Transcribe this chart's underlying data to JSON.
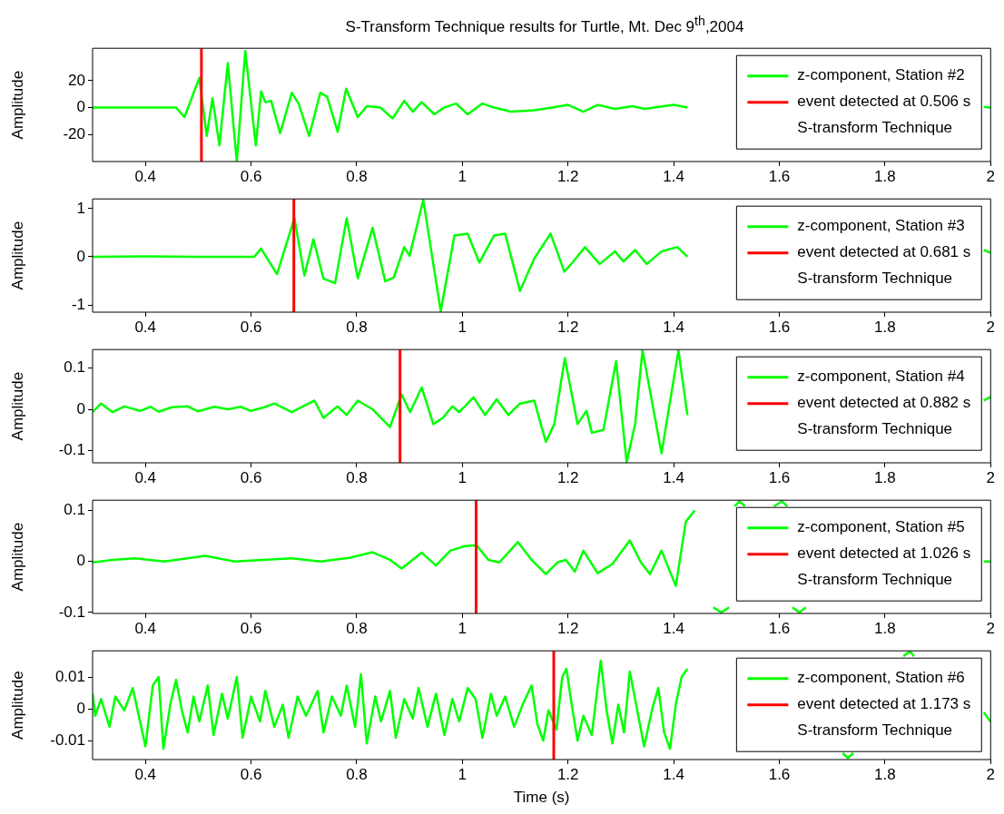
{
  "chart_data": [
    {
      "type": "line",
      "title": "S-Transform Technique results for Turtle, Mt. Dec 9$^{th}$,2004",
      "ylabel": "Amplitude",
      "xlim": [
        0.3,
        2
      ],
      "xticks": [
        0.4,
        0.6,
        0.8,
        1,
        1.2,
        1.4,
        1.6,
        1.8,
        2
      ],
      "ylim": [
        -40,
        44
      ],
      "yticks": [
        -20,
        0,
        20
      ],
      "legend": "top right",
      "annotations": [
        "S-transform Technique"
      ],
      "series": [
        {
          "name": "event detected at 0.506 s",
          "color": "#ff0000",
          "x": [
            0.506,
            0.506
          ],
          "values": [
            -40,
            44
          ]
        },
        {
          "name": "z-component, Station #2",
          "color": "#00ff00",
          "x": [
            0.3,
            0.4,
            0.458,
            0.474,
            0.502,
            0.516,
            0.527,
            0.54,
            0.556,
            0.573,
            0.589,
            0.609,
            0.619,
            0.627,
            0.638,
            0.655,
            0.677,
            0.69,
            0.71,
            0.731,
            0.744,
            0.764,
            0.78,
            0.802,
            0.819,
            0.845,
            0.868,
            0.89,
            0.906,
            0.923,
            0.947,
            0.965,
            0.988,
            1.01,
            1.038,
            1.06,
            1.092,
            1.136,
            1.17,
            1.2,
            1.229,
            1.256,
            1.289,
            1.322,
            1.345,
            1.4,
            1.426,
            1.43,
            1.987,
            2.0
          ],
          "values": [
            0,
            0,
            0,
            -7,
            22,
            -21,
            7,
            -28,
            33,
            -40,
            42,
            -28,
            12,
            4,
            5,
            -19,
            11,
            3,
            -21,
            11,
            8,
            -18,
            14,
            -7,
            1,
            0,
            -8,
            5,
            -3,
            4,
            -5,
            0,
            3,
            -5,
            3,
            0,
            -3,
            -2,
            0,
            2,
            -3,
            2,
            -1,
            1,
            -1,
            2,
            0,
            null,
            0.5,
            0
          ]
        }
      ]
    },
    {
      "type": "line",
      "ylabel": "Amplitude",
      "xlim": [
        0.3,
        2
      ],
      "xticks": [
        0.4,
        0.6,
        0.8,
        1,
        1.2,
        1.4,
        1.6,
        1.8,
        2
      ],
      "ylim": [
        -1.15,
        1.2
      ],
      "yticks": [
        -1,
        0,
        1
      ],
      "legend": "top right",
      "annotations": [
        "S-transform Technique"
      ],
      "series": [
        {
          "name": "event detected at 0.681 s",
          "color": "#ff0000",
          "x": [
            0.681,
            0.681
          ],
          "values": [
            -1.15,
            1.2
          ]
        },
        {
          "name": "z-component, Station #3",
          "color": "#00ff00",
          "x": [
            0.3,
            0.4,
            0.5,
            0.606,
            0.619,
            0.649,
            0.682,
            0.701,
            0.718,
            0.737,
            0.759,
            0.781,
            0.802,
            0.83,
            0.854,
            0.87,
            0.89,
            0.9,
            0.926,
            0.959,
            0.985,
            1.01,
            1.032,
            1.06,
            1.081,
            1.109,
            1.136,
            1.167,
            1.193,
            1.21,
            1.232,
            1.26,
            1.289,
            1.305,
            1.327,
            1.349,
            1.377,
            1.407,
            1.426,
            1.43,
            1.987,
            2.0
          ],
          "values": [
            0,
            0.01,
            0,
            0,
            0.17,
            -0.36,
            0.8,
            -0.39,
            0.36,
            -0.45,
            -0.55,
            0.8,
            -0.45,
            0.6,
            -0.51,
            -0.43,
            0.2,
            0.02,
            1.18,
            -1.13,
            0.44,
            0.48,
            -0.12,
            0.44,
            0.48,
            -0.71,
            -0.04,
            0.48,
            -0.31,
            -0.1,
            0.2,
            -0.15,
            0.11,
            -0.1,
            0.14,
            -0.15,
            0.11,
            0.2,
            0,
            null,
            0.14,
            0.08
          ]
        }
      ]
    },
    {
      "type": "line",
      "ylabel": "Amplitude",
      "xlim": [
        0.3,
        2
      ],
      "xticks": [
        0.4,
        0.6,
        0.8,
        1,
        1.2,
        1.4,
        1.6,
        1.8,
        2
      ],
      "ylim": [
        -0.13,
        0.145
      ],
      "yticks": [
        -0.1,
        0,
        0.1
      ],
      "legend": "top right",
      "annotations": [
        "S-transform Technique"
      ],
      "series": [
        {
          "name": "event detected at 0.882 s",
          "color": "#ff0000",
          "x": [
            0.882,
            0.882
          ],
          "values": [
            -0.13,
            0.145
          ]
        },
        {
          "name": "z-component, Station #4",
          "color": "#00ff00",
          "x": [
            0.3,
            0.316,
            0.338,
            0.36,
            0.39,
            0.41,
            0.425,
            0.45,
            0.48,
            0.5,
            0.53,
            0.556,
            0.58,
            0.6,
            0.625,
            0.644,
            0.677,
            0.72,
            0.737,
            0.764,
            0.781,
            0.802,
            0.83,
            0.863,
            0.885,
            0.901,
            0.923,
            0.945,
            0.963,
            0.981,
            0.994,
            1.021,
            1.043,
            1.065,
            1.087,
            1.109,
            1.136,
            1.158,
            1.174,
            1.194,
            1.218,
            1.235,
            1.245,
            1.267,
            1.291,
            1.311,
            1.327,
            1.341,
            1.377,
            1.409,
            1.426,
            1.43,
            1.987,
            2.0
          ],
          "values": [
            -0.007,
            0.014,
            -0.007,
            0.007,
            -0.004,
            0.006,
            -0.006,
            0.005,
            0.007,
            -0.005,
            0.006,
            0,
            0.006,
            -0.004,
            0.005,
            0.014,
            -0.007,
            0.021,
            -0.021,
            0.007,
            -0.014,
            0.021,
            0,
            -0.043,
            0.036,
            -0.007,
            0.053,
            -0.036,
            -0.021,
            0.007,
            -0.007,
            0.029,
            -0.014,
            0.024,
            -0.014,
            0.014,
            0.021,
            -0.079,
            -0.036,
            0.124,
            -0.036,
            -0.004,
            -0.057,
            -0.05,
            0.117,
            -0.129,
            -0.036,
            0.143,
            -0.107,
            0.143,
            -0.014,
            null,
            0.021,
            0.03
          ]
        }
      ]
    },
    {
      "type": "line",
      "ylabel": "Amplitude",
      "xlim": [
        0.3,
        2
      ],
      "xticks": [
        0.4,
        0.6,
        0.8,
        1,
        1.2,
        1.4,
        1.6,
        1.8,
        2
      ],
      "ylim": [
        -0.102,
        0.12
      ],
      "yticks": [
        -0.1,
        0,
        0.1
      ],
      "legend": "top right",
      "annotations": [
        "S-transform Technique"
      ],
      "series": [
        {
          "name": "event detected at 1.026 s",
          "color": "#ff0000",
          "x": [
            1.026,
            1.026
          ],
          "values": [
            -0.102,
            0.12
          ]
        },
        {
          "name": "z-component, Station #5",
          "color": "#00ff00",
          "x": [
            0.3,
            0.338,
            0.38,
            0.436,
            0.513,
            0.568,
            0.622,
            0.677,
            0.731,
            0.786,
            0.83,
            0.863,
            0.885,
            0.923,
            0.95,
            0.977,
            1.005,
            1.027,
            1.049,
            1.07,
            1.105,
            1.131,
            1.158,
            1.18,
            1.196,
            1.213,
            1.229,
            1.256,
            1.284,
            1.317,
            1.338,
            1.355,
            1.377,
            1.404,
            1.423,
            1.44,
            1.46,
            1.475,
            1.49,
            1.505,
            1.51,
            1.515,
            1.525,
            1.535,
            1.56,
            1.59,
            1.605,
            1.615,
            1.62,
            1.625,
            1.638,
            1.65,
            1.7,
            1.987,
            2.0
          ],
          "values": [
            -0.002,
            0.003,
            0.006,
            0,
            0.011,
            0,
            0.003,
            0.006,
            0,
            0.007,
            0.018,
            0.003,
            -0.014,
            0.017,
            -0.008,
            0.021,
            0.03,
            0.032,
            0.003,
            -0.002,
            0.038,
            0.003,
            -0.025,
            -0.002,
            0.003,
            -0.02,
            0.021,
            -0.023,
            -0.005,
            0.041,
            -0.002,
            -0.025,
            0.021,
            -0.048,
            0.078,
            0.1,
            null,
            -0.09,
            -0.1,
            -0.09,
            null,
            0.108,
            0.118,
            0.108,
            null,
            0.108,
            0.118,
            0.108,
            null,
            -0.09,
            -0.1,
            -0.09,
            null,
            0,
            0
          ]
        }
      ]
    },
    {
      "type": "line",
      "xlabel": "Time (s)",
      "ylabel": "Amplitude",
      "xlim": [
        0.3,
        2
      ],
      "xticks": [
        0.4,
        0.6,
        0.8,
        1,
        1.2,
        1.4,
        1.6,
        1.8,
        2
      ],
      "ylim": [
        -0.016,
        0.0185
      ],
      "yticks": [
        -0.01,
        0,
        0.01
      ],
      "legend": "top right",
      "annotations": [
        "S-transform Technique"
      ],
      "series": [
        {
          "name": "event detected at 1.173 s",
          "color": "#ff0000",
          "x": [
            1.173,
            1.173
          ],
          "values": [
            -0.016,
            0.0185
          ]
        },
        {
          "name": "z-component, Station #6",
          "color": "#00ff00",
          "x": [
            0.3,
            0.305,
            0.316,
            0.332,
            0.343,
            0.36,
            0.376,
            0.392,
            0.4,
            0.414,
            0.425,
            0.434,
            0.447,
            0.458,
            0.469,
            0.48,
            0.491,
            0.502,
            0.518,
            0.529,
            0.545,
            0.556,
            0.573,
            0.584,
            0.6,
            0.617,
            0.627,
            0.644,
            0.66,
            0.671,
            0.688,
            0.704,
            0.726,
            0.737,
            0.753,
            0.77,
            0.781,
            0.797,
            0.808,
            0.819,
            0.835,
            0.846,
            0.863,
            0.874,
            0.89,
            0.906,
            0.917,
            0.934,
            0.95,
            0.966,
            0.981,
            0.994,
            1.01,
            1.025,
            1.038,
            1.054,
            1.065,
            1.081,
            1.098,
            1.114,
            1.131,
            1.142,
            1.153,
            1.163,
            1.178,
            1.189,
            1.197,
            1.207,
            1.218,
            1.229,
            1.245,
            1.262,
            1.273,
            1.284,
            1.295,
            1.306,
            1.317,
            1.327,
            1.344,
            1.36,
            1.371,
            1.382,
            1.393,
            1.404,
            1.415,
            1.426,
            1.43,
            1.72,
            1.73,
            1.74,
            1.78,
            1.835,
            1.847,
            1.855,
            1.9,
            1.987,
            2.0
          ],
          "values": [
            0.0049,
            -0.0021,
            0.0032,
            -0.0056,
            0.004,
            -0.0004,
            0.0067,
            -0.0056,
            -0.0118,
            0.0075,
            0.0102,
            -0.0126,
            0.0014,
            0.0093,
            -0.0004,
            -0.0074,
            0.004,
            -0.0039,
            0.0075,
            -0.0082,
            0.0049,
            -0.003,
            0.0102,
            -0.0091,
            0.004,
            -0.0039,
            0.0058,
            -0.0056,
            0.0014,
            -0.0091,
            0.004,
            -0.0021,
            0.0058,
            -0.0074,
            0.004,
            -0.0021,
            0.0075,
            -0.0056,
            0.0111,
            -0.0109,
            0.004,
            -0.0039,
            0.0058,
            -0.0091,
            0.0032,
            -0.003,
            0.0067,
            -0.0056,
            0.0049,
            -0.0082,
            0.0032,
            -0.0039,
            0.0067,
            0.0032,
            -0.0091,
            0.0049,
            -0.0021,
            0.004,
            -0.0056,
            0.0014,
            0.0075,
            -0.0047,
            -0.01,
            -0.0004,
            -0.0065,
            0.0102,
            0.0128,
            0.0014,
            -0.01,
            -0.0021,
            -0.0082,
            0.0154,
            -0.0004,
            -0.0109,
            0.0014,
            -0.0074,
            0.0119,
            0.0032,
            -0.0118,
            0.0005,
            0.0067,
            -0.0074,
            -0.0126,
            0.0014,
            0.0102,
            0.0128,
            null,
            -0.014,
            -0.0155,
            -0.014,
            null,
            0.0168,
            0.0183,
            0.0168,
            null,
            -0.001,
            -0.004
          ]
        }
      ]
    }
  ]
}
